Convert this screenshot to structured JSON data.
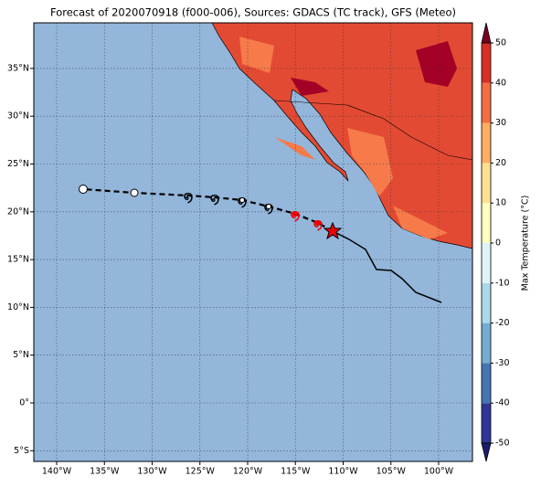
{
  "title": "Forecast of 2020070918 (f000-006), Sources: GDACS (TC track), GFS (Meteo)",
  "lon_ticks": [
    {
      "value": -140,
      "label": "140°W"
    },
    {
      "value": -135,
      "label": "135°W"
    },
    {
      "value": -130,
      "label": "130°W"
    },
    {
      "value": -125,
      "label": "125°W"
    },
    {
      "value": -120,
      "label": "120°W"
    },
    {
      "value": -115,
      "label": "115°W"
    },
    {
      "value": -110,
      "label": "110°W"
    },
    {
      "value": -105,
      "label": "105°W"
    },
    {
      "value": -100,
      "label": "100°W"
    }
  ],
  "lat_ticks": [
    {
      "value": -5,
      "label": "5°S"
    },
    {
      "value": 0,
      "label": "0°"
    },
    {
      "value": 5,
      "label": "5°N"
    },
    {
      "value": 10,
      "label": "10°N"
    },
    {
      "value": 15,
      "label": "15°N"
    },
    {
      "value": 20,
      "label": "20°N"
    },
    {
      "value": 25,
      "label": "25°N"
    },
    {
      "value": 30,
      "label": "30°N"
    },
    {
      "value": 35,
      "label": "35°N"
    }
  ],
  "colorbar": {
    "label": "Max Temperature (°C)",
    "ticks": [
      -50,
      -40,
      -30,
      -20,
      -10,
      0,
      10,
      20,
      30,
      40,
      50
    ],
    "colors": [
      "#313695",
      "#4575b4",
      "#74add1",
      "#abd9e9",
      "#e0f3f8",
      "#ffffbf",
      "#fee090",
      "#fdae61",
      "#f46d43",
      "#d73027",
      "#a50026"
    ],
    "extend_colors": [
      "#1a1d6b",
      "#7a0020"
    ]
  }
}
